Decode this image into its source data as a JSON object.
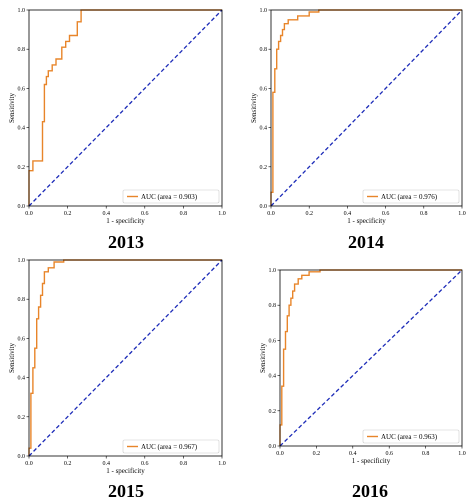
{
  "chart_data": [
    {
      "type": "line",
      "year": "2013",
      "xlabel": "1 - specificity",
      "ylabel": "Sensitivity",
      "xlim": [
        0,
        1
      ],
      "ylim": [
        0,
        1
      ],
      "xticks": [
        "0.0",
        "0.2",
        "0.4",
        "0.6",
        "0.8",
        "1.0"
      ],
      "yticks": [
        "0.0",
        "0.2",
        "0.4",
        "0.6",
        "0.8",
        "1.0"
      ],
      "legend": "AUC (area = 0.903)",
      "legend_position": "lower-right",
      "series": [
        {
          "name": "AUC (area = 0.903)",
          "color": "#E8852A",
          "x": [
            0.0,
            0.0,
            0.02,
            0.02,
            0.07,
            0.07,
            0.08,
            0.08,
            0.09,
            0.09,
            0.1,
            0.1,
            0.12,
            0.12,
            0.14,
            0.14,
            0.17,
            0.17,
            0.19,
            0.19,
            0.21,
            0.21,
            0.25,
            0.25,
            0.27,
            0.27,
            1.0
          ],
          "y": [
            0.0,
            0.18,
            0.18,
            0.23,
            0.23,
            0.43,
            0.43,
            0.62,
            0.62,
            0.66,
            0.66,
            0.69,
            0.69,
            0.72,
            0.72,
            0.75,
            0.75,
            0.81,
            0.81,
            0.84,
            0.84,
            0.87,
            0.87,
            0.94,
            0.94,
            1.0,
            1.0
          ]
        },
        {
          "name": "",
          "color": "#1C2BB8",
          "style": "dashed",
          "x": [
            0,
            1
          ],
          "y": [
            0,
            1
          ]
        }
      ]
    },
    {
      "type": "line",
      "year": "2014",
      "xlabel": "1 - specificity",
      "ylabel": "Sensitivity",
      "xlim": [
        0,
        1
      ],
      "ylim": [
        0,
        1
      ],
      "xticks": [
        "0.0",
        "0.2",
        "0.4",
        "0.6",
        "0.8",
        "1.0"
      ],
      "yticks": [
        "0.0",
        "0.2",
        "0.4",
        "0.6",
        "0.8",
        "1.0"
      ],
      "legend": "AUC (area = 0.976)",
      "legend_position": "lower-right",
      "series": [
        {
          "name": "AUC (area = 0.976)",
          "color": "#E8852A",
          "x": [
            0.0,
            0.0,
            0.01,
            0.01,
            0.02,
            0.02,
            0.03,
            0.03,
            0.04,
            0.04,
            0.05,
            0.05,
            0.06,
            0.06,
            0.07,
            0.07,
            0.09,
            0.09,
            0.14,
            0.14,
            0.2,
            0.2,
            0.25,
            0.25,
            1.0
          ],
          "y": [
            0.0,
            0.07,
            0.07,
            0.58,
            0.58,
            0.7,
            0.7,
            0.8,
            0.8,
            0.84,
            0.84,
            0.87,
            0.87,
            0.9,
            0.9,
            0.93,
            0.93,
            0.95,
            0.95,
            0.97,
            0.97,
            0.99,
            0.99,
            1.0,
            1.0
          ]
        },
        {
          "name": "",
          "color": "#1C2BB8",
          "style": "dashed",
          "x": [
            0,
            1
          ],
          "y": [
            0,
            1
          ]
        }
      ]
    },
    {
      "type": "line",
      "year": "2015",
      "xlabel": "1 - specificity",
      "ylabel": "Sensitivity",
      "xlim": [
        0,
        1
      ],
      "ylim": [
        0,
        1
      ],
      "xticks": [
        "0.0",
        "0.2",
        "0.4",
        "0.6",
        "0.8",
        "1.0"
      ],
      "yticks": [
        "0.0",
        "0.2",
        "0.4",
        "0.6",
        "0.8",
        "1.0"
      ],
      "legend": "AUC (area = 0.967)",
      "legend_position": "lower-right",
      "series": [
        {
          "name": "AUC (area = 0.967)",
          "color": "#E8852A",
          "x": [
            0.0,
            0.0,
            0.01,
            0.01,
            0.02,
            0.02,
            0.03,
            0.03,
            0.04,
            0.04,
            0.05,
            0.05,
            0.06,
            0.06,
            0.07,
            0.07,
            0.08,
            0.08,
            0.1,
            0.1,
            0.13,
            0.13,
            0.18,
            0.18,
            1.0
          ],
          "y": [
            0.0,
            0.04,
            0.04,
            0.32,
            0.32,
            0.45,
            0.45,
            0.55,
            0.55,
            0.7,
            0.7,
            0.76,
            0.76,
            0.82,
            0.82,
            0.88,
            0.88,
            0.94,
            0.94,
            0.96,
            0.96,
            0.99,
            0.99,
            1.0,
            1.0
          ]
        },
        {
          "name": "",
          "color": "#1C2BB8",
          "style": "dashed",
          "x": [
            0,
            1
          ],
          "y": [
            0,
            1
          ]
        }
      ]
    },
    {
      "type": "line",
      "year": "2016",
      "xlabel": "1 - specificity",
      "ylabel": "Sensitivity",
      "xlim": [
        0,
        1
      ],
      "ylim": [
        0,
        1
      ],
      "xticks": [
        "0.0",
        "0.2",
        "0.4",
        "0.6",
        "0.8",
        "1.0"
      ],
      "yticks": [
        "0.0",
        "0.2",
        "0.4",
        "0.6",
        "0.8",
        "1.0"
      ],
      "legend": "AUC (area = 0.963)",
      "legend_position": "lower-right",
      "series": [
        {
          "name": "AUC (area = 0.963)",
          "color": "#E8852A",
          "x": [
            0.0,
            0.0,
            0.01,
            0.01,
            0.02,
            0.02,
            0.03,
            0.03,
            0.04,
            0.04,
            0.05,
            0.05,
            0.06,
            0.06,
            0.07,
            0.07,
            0.08,
            0.08,
            0.1,
            0.1,
            0.12,
            0.12,
            0.16,
            0.16,
            0.22,
            0.22,
            1.0
          ],
          "y": [
            0.0,
            0.12,
            0.12,
            0.34,
            0.34,
            0.55,
            0.55,
            0.65,
            0.65,
            0.74,
            0.74,
            0.8,
            0.8,
            0.84,
            0.84,
            0.88,
            0.88,
            0.92,
            0.92,
            0.95,
            0.95,
            0.97,
            0.97,
            0.99,
            0.99,
            1.0,
            1.0
          ]
        },
        {
          "name": "",
          "color": "#1C2BB8",
          "style": "dashed",
          "x": [
            0,
            1
          ],
          "y": [
            0,
            1
          ]
        }
      ]
    }
  ]
}
